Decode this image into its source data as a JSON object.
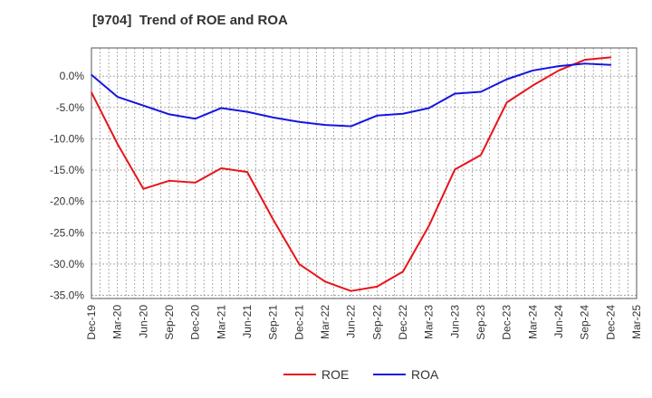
{
  "chart_data": {
    "type": "line",
    "title": "[9704]  Trend of ROE and ROA",
    "xlabel": "",
    "ylabel": "",
    "ylim": [
      -35.5,
      4.5
    ],
    "y_ticks": [
      0,
      -5,
      -10,
      -15,
      -20,
      -25,
      -30,
      -35
    ],
    "y_tick_labels": [
      "0.0%",
      "-5.0%",
      "-10.0%",
      "-15.0%",
      "-20.0%",
      "-25.0%",
      "-30.0%",
      "-35.0%"
    ],
    "x_tick_labels": [
      "Dec-19",
      "Mar-20",
      "Jun-20",
      "Sep-20",
      "Dec-20",
      "Mar-21",
      "Jun-21",
      "Sep-21",
      "Dec-21",
      "Mar-22",
      "Jun-22",
      "Sep-22",
      "Dec-22",
      "Mar-23",
      "Jun-23",
      "Sep-23",
      "Dec-23",
      "Mar-24",
      "Jun-24",
      "Sep-24",
      "Dec-24",
      "Mar-25"
    ],
    "grid": true,
    "legend_position": "bottom",
    "series": [
      {
        "name": "ROE",
        "color": "#e8141a",
        "x": [
          "Dec-19",
          "Mar-20",
          "Jun-20",
          "Sep-20",
          "Dec-20",
          "Mar-21",
          "Jun-21",
          "Sep-21",
          "Dec-21",
          "Mar-22",
          "Jun-22",
          "Sep-22",
          "Dec-22",
          "Mar-23",
          "Jun-23",
          "Sep-23",
          "Dec-23",
          "Mar-24",
          "Jun-24",
          "Sep-24",
          "Dec-24"
        ],
        "values": [
          -2.6,
          -10.8,
          -18.0,
          -16.7,
          -17.0,
          -14.7,
          -15.3,
          -22.9,
          -30.0,
          -32.8,
          -34.3,
          -33.6,
          -31.2,
          -23.9,
          -14.9,
          -12.6,
          -4.2,
          -1.5,
          0.9,
          2.6,
          3.0
        ]
      },
      {
        "name": "ROA",
        "color": "#1515e0",
        "x": [
          "Dec-19",
          "Mar-20",
          "Jun-20",
          "Sep-20",
          "Dec-20",
          "Mar-21",
          "Jun-21",
          "Sep-21",
          "Dec-21",
          "Mar-22",
          "Jun-22",
          "Sep-22",
          "Dec-22",
          "Mar-23",
          "Jun-23",
          "Sep-23",
          "Dec-23",
          "Mar-24",
          "Jun-24",
          "Sep-24",
          "Dec-24"
        ],
        "values": [
          0.2,
          -3.3,
          -4.7,
          -6.1,
          -6.8,
          -5.1,
          -5.7,
          -6.6,
          -7.3,
          -7.8,
          -8.0,
          -6.3,
          -6.0,
          -5.1,
          -2.8,
          -2.5,
          -0.5,
          0.9,
          1.6,
          2.0,
          1.8
        ]
      }
    ]
  }
}
